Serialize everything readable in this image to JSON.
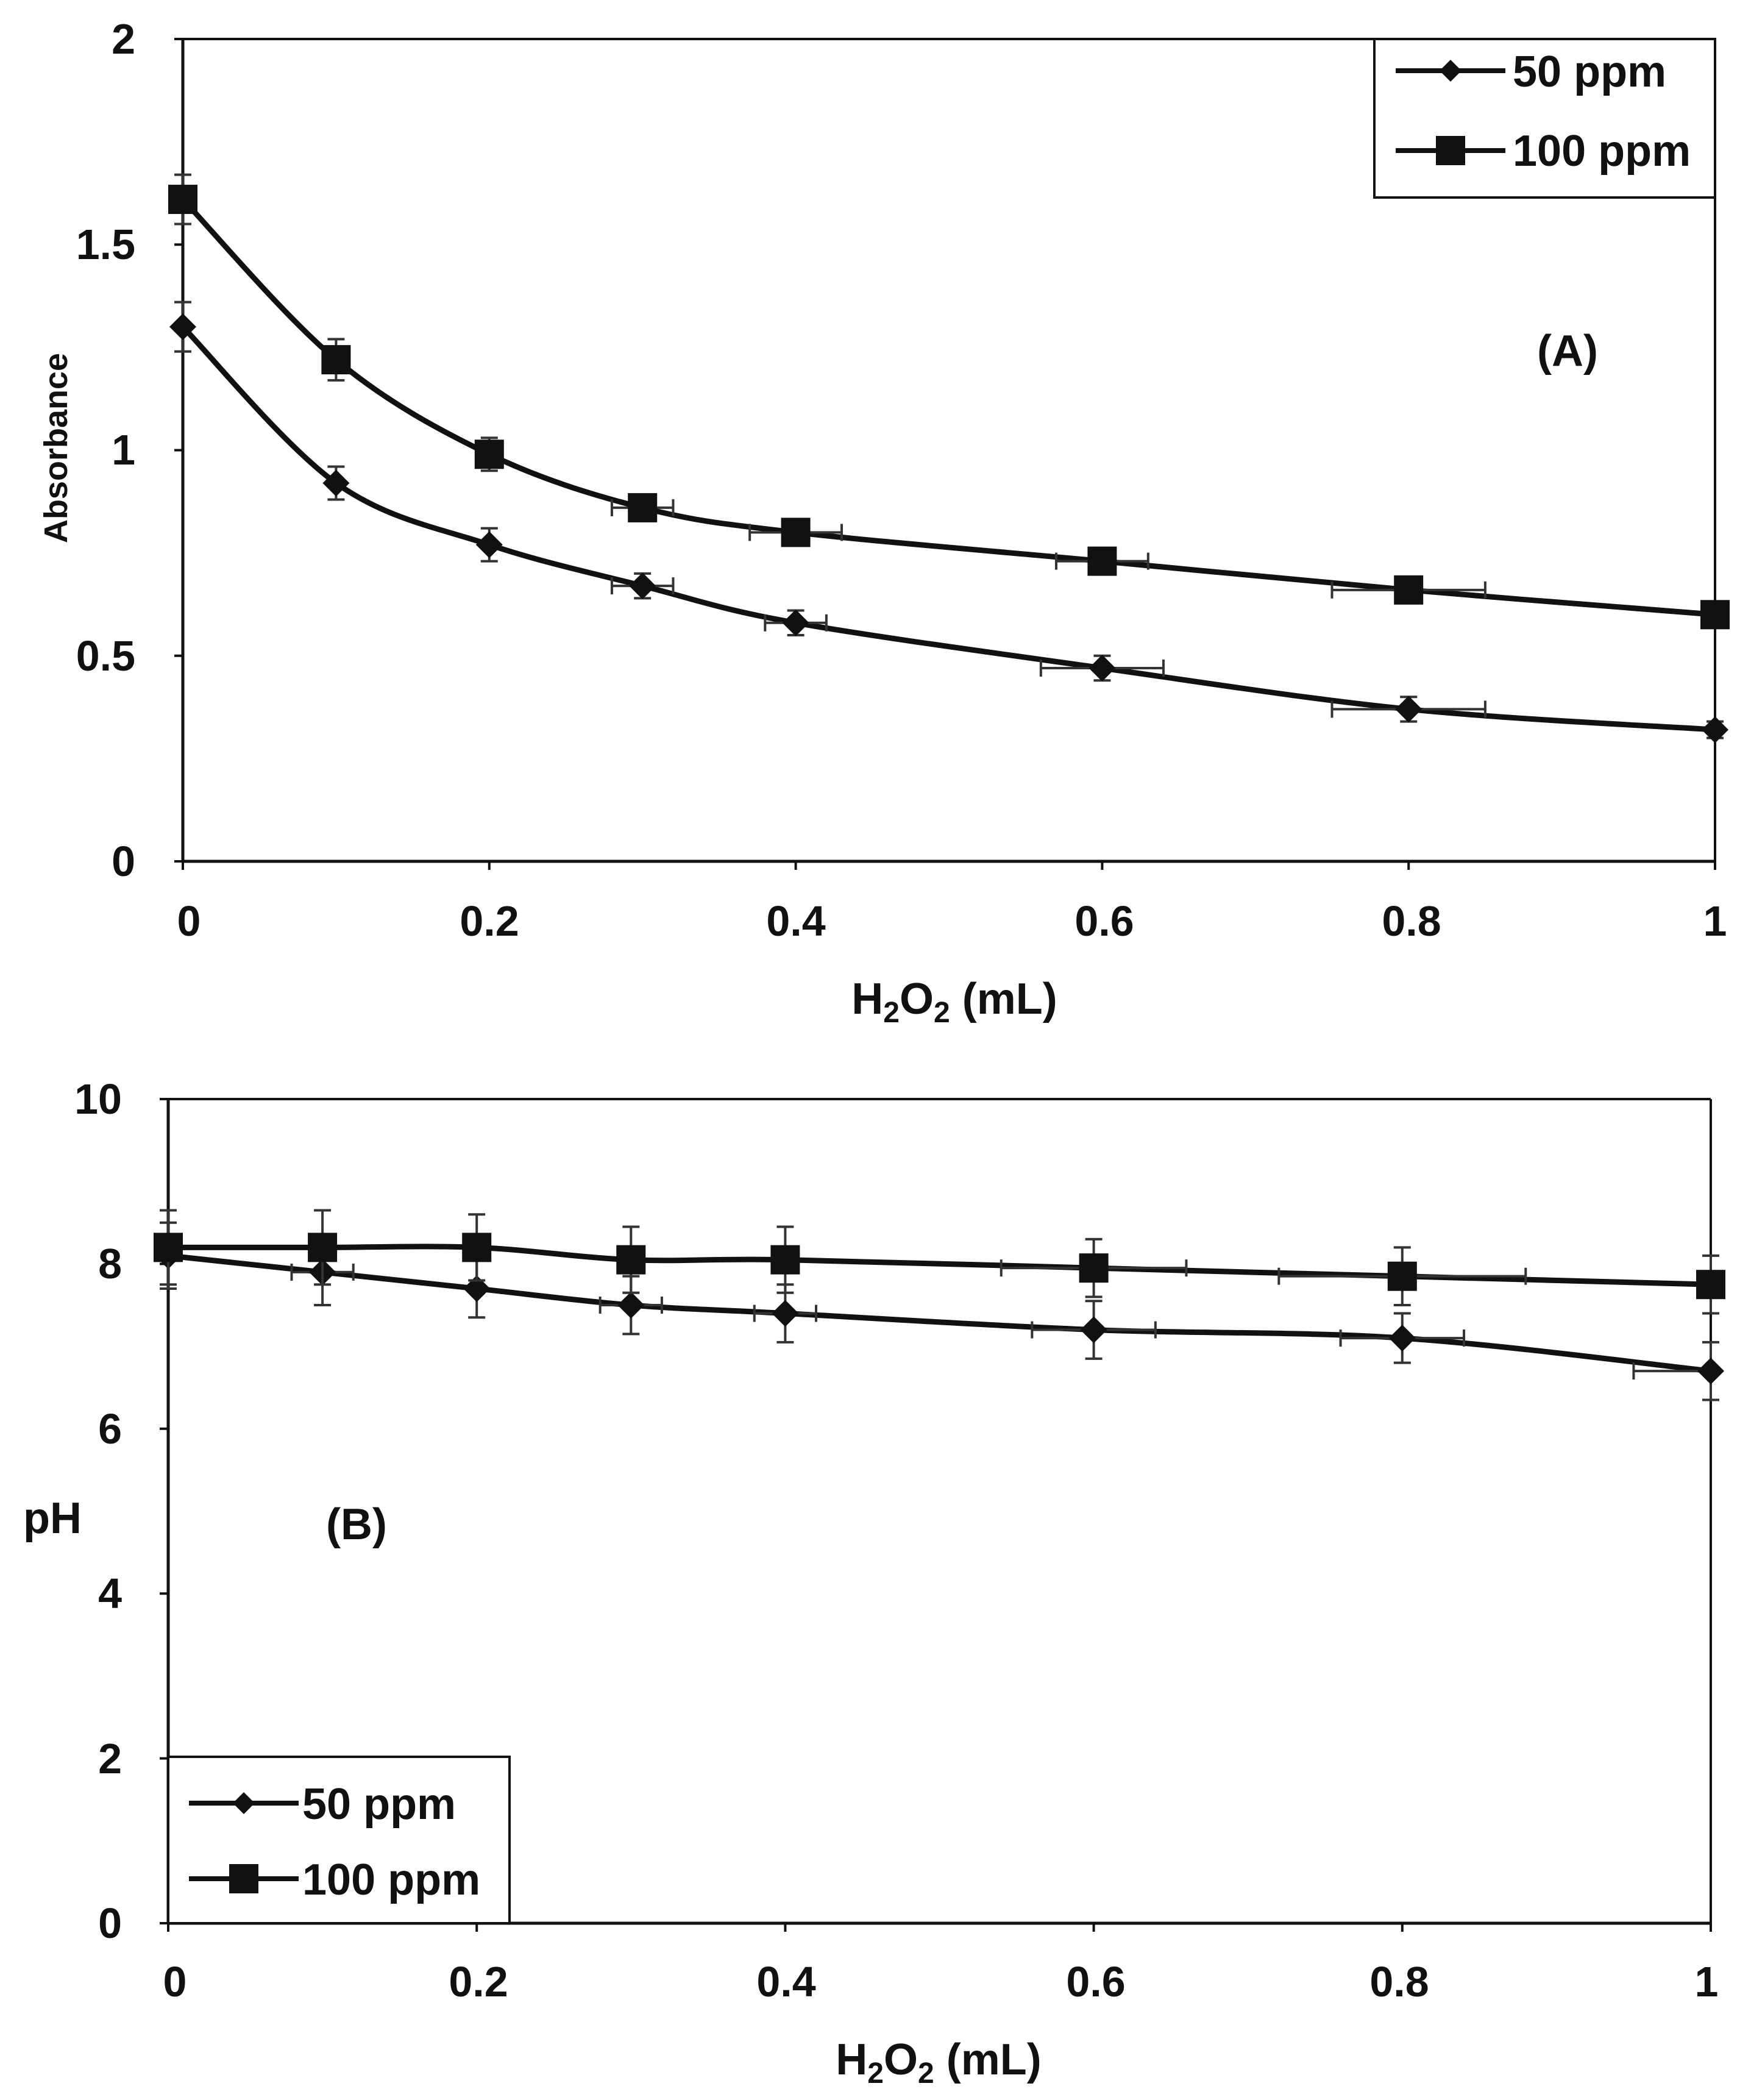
{
  "chart_data": [
    {
      "type": "line",
      "panel_label": "(A)",
      "xlabel_base": "H",
      "xlabel_sub1": "2",
      "xlabel_mid": "O",
      "xlabel_sub2": "2",
      "xlabel_tail": " (mL)",
      "ylabel": "Absorbance",
      "xlim": [
        0,
        1
      ],
      "ylim": [
        0,
        2
      ],
      "xticks": [
        "0",
        "0.2",
        "0.4",
        "0.6",
        "0.8",
        "1"
      ],
      "yticks": [
        "0",
        "0.5",
        "1",
        "1.5",
        "2"
      ],
      "grid": false,
      "legend_position": "top-right",
      "x": [
        0,
        0.1,
        0.2,
        0.3,
        0.4,
        0.6,
        0.8,
        1
      ],
      "series": [
        {
          "name": "50 ppm",
          "marker": "diamond",
          "values": [
            1.3,
            0.92,
            0.77,
            0.67,
            0.58,
            0.47,
            0.37,
            0.32
          ],
          "yerr": [
            0.06,
            0.04,
            0.04,
            0.03,
            0.03,
            0.03,
            0.03,
            0.02
          ],
          "xerr": [
            0,
            0,
            0,
            0.02,
            0.02,
            0.04,
            0.05,
            0
          ]
        },
        {
          "name": "100 ppm",
          "marker": "square",
          "values": [
            1.61,
            1.22,
            0.99,
            0.86,
            0.8,
            0.73,
            0.66,
            0.6
          ],
          "yerr": [
            0.06,
            0.05,
            0.04,
            0.03,
            0.03,
            0.03,
            0.03,
            0.02
          ],
          "xerr": [
            0,
            0,
            0,
            0.02,
            0.03,
            0.03,
            0.05,
            0
          ]
        }
      ]
    },
    {
      "type": "line",
      "panel_label": "(B)",
      "xlabel_base": "H",
      "xlabel_sub1": "2",
      "xlabel_mid": "O",
      "xlabel_sub2": "2",
      "xlabel_tail": " (mL)",
      "ylabel": "pH",
      "xlim": [
        0,
        1
      ],
      "ylim": [
        0,
        10
      ],
      "xticks": [
        "0",
        "0.2",
        "0.4",
        "0.6",
        "0.8",
        "1"
      ],
      "yticks": [
        "0",
        "2",
        "4",
        "6",
        "8",
        "10"
      ],
      "grid": false,
      "legend_position": "bottom-left",
      "x": [
        0,
        0.1,
        0.2,
        0.3,
        0.4,
        0.6,
        0.8,
        1
      ],
      "series": [
        {
          "name": "50 ppm",
          "marker": "diamond",
          "values": [
            8.1,
            7.9,
            7.7,
            7.5,
            7.4,
            7.2,
            7.1,
            6.7
          ],
          "yerr": [
            0.4,
            0.4,
            0.35,
            0.35,
            0.35,
            0.35,
            0.3,
            0.35
          ],
          "xerr": [
            0,
            0.02,
            0,
            0.02,
            0.02,
            0.04,
            0.04,
            0.05
          ]
        },
        {
          "name": "100 ppm",
          "marker": "square",
          "values": [
            8.2,
            8.2,
            8.2,
            8.05,
            8.05,
            7.95,
            7.85,
            7.75
          ],
          "yerr": [
            0.45,
            0.45,
            0.4,
            0.4,
            0.4,
            0.35,
            0.35,
            0.35
          ],
          "xerr": [
            0,
            0,
            0,
            0,
            0,
            0.06,
            0.08,
            0
          ]
        }
      ]
    }
  ]
}
